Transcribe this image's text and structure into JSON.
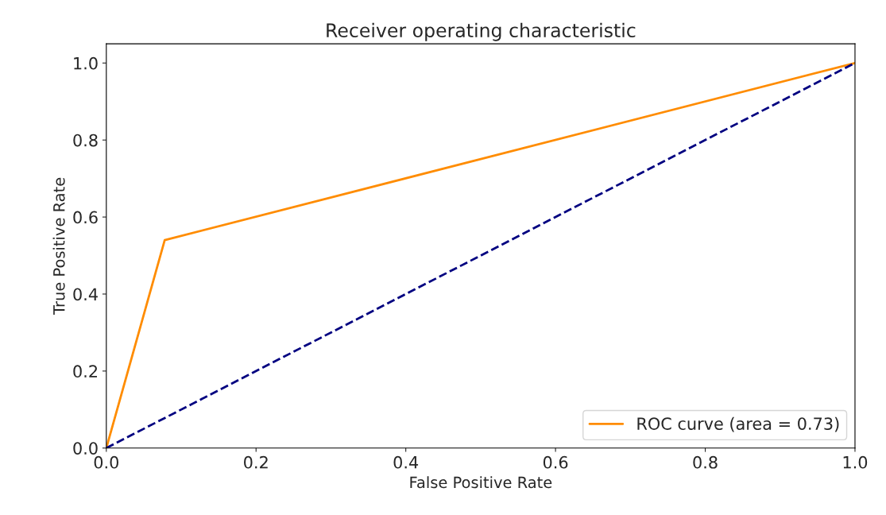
{
  "chart_data": {
    "type": "line",
    "title": "Receiver operating characteristic",
    "xlabel": "False Positive Rate",
    "ylabel": "True Positive Rate",
    "series": [
      {
        "name": "ROC curve (area = 0.73)",
        "color": "#ff8c00",
        "x": [
          0,
          0.078,
          1
        ],
        "values": [
          0,
          0.54,
          1
        ],
        "line_style": "solid"
      },
      {
        "color": "#000080",
        "x": [
          0,
          1
        ],
        "values": [
          0,
          1
        ],
        "line_style": "dashed"
      }
    ],
    "xlim": [
      0,
      1
    ],
    "ylim": [
      0,
      1.05
    ],
    "xticks": [
      {
        "value": 0,
        "label": "0.0"
      },
      {
        "value": 0.2,
        "label": "0.2"
      },
      {
        "value": 0.4,
        "label": "0.4"
      },
      {
        "value": 0.6,
        "label": "0.6"
      },
      {
        "value": 0.8,
        "label": "0.8"
      },
      {
        "value": 1,
        "label": "1.0"
      }
    ],
    "yticks": [
      {
        "value": 0,
        "label": "0.0"
      },
      {
        "value": 0.2,
        "label": "0.2"
      },
      {
        "value": 0.4,
        "label": "0.4"
      },
      {
        "value": 0.6,
        "label": "0.6"
      },
      {
        "value": 0.8,
        "label": "0.8"
      },
      {
        "value": 1,
        "label": "1.0"
      }
    ],
    "legend": "bottom right",
    "grid": false
  }
}
